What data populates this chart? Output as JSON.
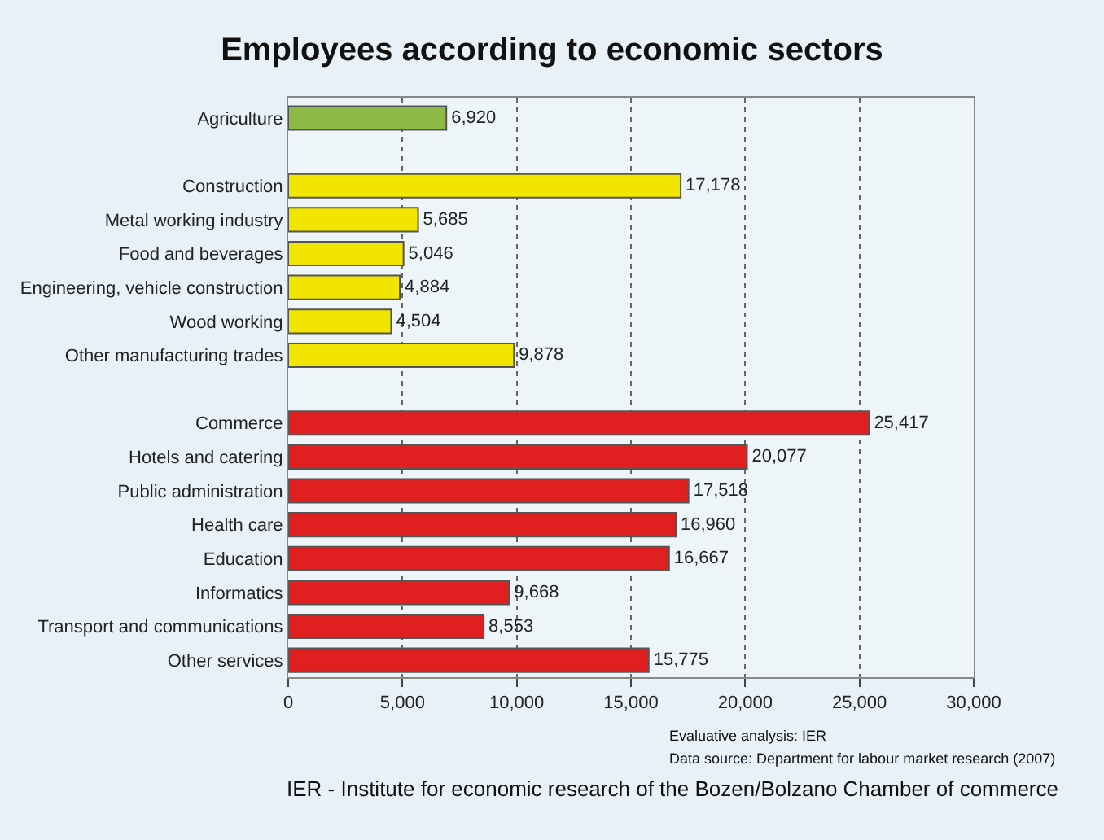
{
  "chart_data": {
    "type": "bar",
    "orientation": "horizontal",
    "title": "Employees according to economic sectors",
    "categories": [
      "Agriculture",
      null,
      "Construction",
      "Metal working industry",
      "Food and beverages",
      "Engineering, vehicle construction",
      "Wood working",
      "Other manufacturing trades",
      null,
      "Commerce",
      "Hotels and catering",
      "Public administration",
      "Health care",
      "Education",
      "Informatics",
      "Transport and communications",
      "Other services"
    ],
    "values": [
      6920,
      null,
      17178,
      5685,
      5046,
      4884,
      4504,
      9878,
      null,
      25417,
      20077,
      17518,
      16960,
      16667,
      9668,
      8553,
      15775
    ],
    "colors": [
      "#8dba44",
      null,
      "#f2e600",
      "#f2e600",
      "#f2e600",
      "#f2e600",
      "#f2e600",
      "#f2e600",
      null,
      "#e02020",
      "#e02020",
      "#e02020",
      "#e02020",
      "#e02020",
      "#e02020",
      "#e02020",
      "#e02020"
    ],
    "value_labels": [
      "6,920",
      null,
      "17,178",
      "5,685",
      "5,046",
      "4,884",
      "4,504",
      "9,878",
      null,
      "25,417",
      "20,077",
      "17,518",
      "16,960",
      "16,667",
      "9,668",
      "8,553",
      "15,775"
    ],
    "xlim": [
      0,
      30000
    ],
    "xticks": [
      {
        "value": 0,
        "label": "0"
      },
      {
        "value": 5000,
        "label": "5,000"
      },
      {
        "value": 10000,
        "label": "10,000"
      },
      {
        "value": 15000,
        "label": "15,000"
      },
      {
        "value": 20000,
        "label": "20,000"
      },
      {
        "value": 25000,
        "label": "25,000"
      },
      {
        "value": 30000,
        "label": "30,000"
      }
    ],
    "grid": "x",
    "legend": false,
    "annotations": [
      "Evaluative analysis: IER",
      "Data source: Department for labour market research (2007)",
      "IER - Institute for economic research of the Bozen/Bolzano Chamber of commerce"
    ]
  }
}
